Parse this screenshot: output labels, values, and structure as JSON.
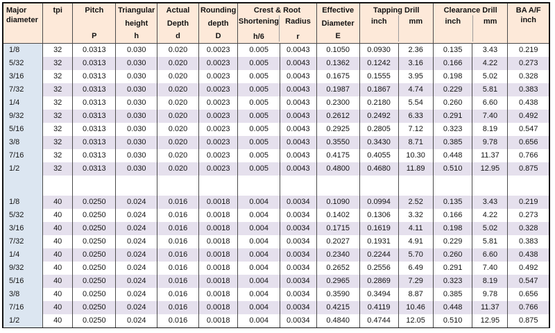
{
  "colors": {
    "header_bg": "#fde9d9",
    "row_bg": "#ffffff",
    "row_alt_bg": "#e5e0ed",
    "first_col_bg": "#dce6f1",
    "border_dark": "#4a4a4a",
    "border_outer": "#121212",
    "border_light": "#9b9b9b",
    "text": "#141414"
  },
  "header": {
    "major_diameter": {
      "line1": "Major",
      "line2": "diameter"
    },
    "tpi": "tpi",
    "pitch": {
      "line1": "Pitch",
      "symbol": "P"
    },
    "triangular_height": {
      "line1": "Triangular",
      "line2": "height",
      "symbol": "h"
    },
    "actual_depth": {
      "line1": "Actual",
      "line2": "Depth",
      "symbol": "d"
    },
    "rounding_depth": {
      "line1": "Rounding",
      "line2": "depth",
      "symbol": "D"
    },
    "crest_root": {
      "group": "Crest & Root",
      "sub1_line1": "Shortening",
      "sub1_line2": "h/6",
      "sub2_line1": "Radius",
      "sub2_line2": "r"
    },
    "effective_diameter": {
      "line1": "Effective",
      "line2": "Diameter",
      "symbol": "E"
    },
    "tapping_drill": {
      "group": "Tapping Drill",
      "sub1": "inch",
      "sub2": "mm"
    },
    "clearance_drill": {
      "group": "Clearance Drill",
      "sub1": "inch",
      "sub2": "mm"
    },
    "ba_af": {
      "line1": "BA A/F",
      "line2": "inch"
    }
  },
  "chart_data": {
    "type": "table",
    "columns": [
      "Major diameter",
      "tpi",
      "Pitch P",
      "Triangular height h",
      "Actual Depth d",
      "Rounding depth D",
      "Crest & Root Shortening h/6",
      "Crest & Root Radius r",
      "Effective Diameter E",
      "Tapping Drill inch",
      "Tapping Drill mm",
      "Clearance Drill inch",
      "Clearance Drill mm",
      "BA A/F inch"
    ],
    "sections": [
      {
        "tpi": "32",
        "rows": [
          [
            "1/8",
            "32",
            "0.0313",
            "0.030",
            "0.020",
            "0.0023",
            "0.005",
            "0.0043",
            "0.1050",
            "0.0930",
            "2.36",
            "0.135",
            "3.43",
            "0.219"
          ],
          [
            "5/32",
            "32",
            "0.0313",
            "0.030",
            "0.020",
            "0.0023",
            "0.005",
            "0.0043",
            "0.1362",
            "0.1242",
            "3.16",
            "0.166",
            "4.22",
            "0.273"
          ],
          [
            "3/16",
            "32",
            "0.0313",
            "0.030",
            "0.020",
            "0.0023",
            "0.005",
            "0.0043",
            "0.1675",
            "0.1555",
            "3.95",
            "0.198",
            "5.02",
            "0.328"
          ],
          [
            "7/32",
            "32",
            "0.0313",
            "0.030",
            "0.020",
            "0.0023",
            "0.005",
            "0.0043",
            "0.1987",
            "0.1867",
            "4.74",
            "0.229",
            "5.81",
            "0.383"
          ],
          [
            "1/4",
            "32",
            "0.0313",
            "0.030",
            "0.020",
            "0.0023",
            "0.005",
            "0.0043",
            "0.2300",
            "0.2180",
            "5.54",
            "0.260",
            "6.60",
            "0.438"
          ],
          [
            "9/32",
            "32",
            "0.0313",
            "0.030",
            "0.020",
            "0.0023",
            "0.005",
            "0.0043",
            "0.2612",
            "0.2492",
            "6.33",
            "0.291",
            "7.40",
            "0.492"
          ],
          [
            "5/16",
            "32",
            "0.0313",
            "0.030",
            "0.020",
            "0.0023",
            "0.005",
            "0.0043",
            "0.2925",
            "0.2805",
            "7.12",
            "0.323",
            "8.19",
            "0.547"
          ],
          [
            "3/8",
            "32",
            "0.0313",
            "0.030",
            "0.020",
            "0.0023",
            "0.005",
            "0.0043",
            "0.3550",
            "0.3430",
            "8.71",
            "0.385",
            "9.78",
            "0.656"
          ],
          [
            "7/16",
            "32",
            "0.0313",
            "0.030",
            "0.020",
            "0.0023",
            "0.005",
            "0.0043",
            "0.4175",
            "0.4055",
            "10.30",
            "0.448",
            "11.37",
            "0.766"
          ],
          [
            "1/2",
            "32",
            "0.0313",
            "0.030",
            "0.020",
            "0.0023",
            "0.005",
            "0.0043",
            "0.4800",
            "0.4680",
            "11.89",
            "0.510",
            "12.95",
            "0.875"
          ]
        ]
      },
      {
        "tpi": "40",
        "rows": [
          [
            "1/8",
            "40",
            "0.0250",
            "0.024",
            "0.016",
            "0.0018",
            "0.004",
            "0.0034",
            "0.1090",
            "0.0994",
            "2.52",
            "0.135",
            "3.43",
            "0.219"
          ],
          [
            "5/32",
            "40",
            "0.0250",
            "0.024",
            "0.016",
            "0.0018",
            "0.004",
            "0.0034",
            "0.1402",
            "0.1306",
            "3.32",
            "0.166",
            "4.22",
            "0.273"
          ],
          [
            "3/16",
            "40",
            "0.0250",
            "0.024",
            "0.016",
            "0.0018",
            "0.004",
            "0.0034",
            "0.1715",
            "0.1619",
            "4.11",
            "0.198",
            "5.02",
            "0.328"
          ],
          [
            "7/32",
            "40",
            "0.0250",
            "0.024",
            "0.016",
            "0.0018",
            "0.004",
            "0.0034",
            "0.2027",
            "0.1931",
            "4.91",
            "0.229",
            "5.81",
            "0.383"
          ],
          [
            "1/4",
            "40",
            "0.0250",
            "0.024",
            "0.016",
            "0.0018",
            "0.004",
            "0.0034",
            "0.2340",
            "0.2244",
            "5.70",
            "0.260",
            "6.60",
            "0.438"
          ],
          [
            "9/32",
            "40",
            "0.0250",
            "0.024",
            "0.016",
            "0.0018",
            "0.004",
            "0.0034",
            "0.2652",
            "0.2556",
            "6.49",
            "0.291",
            "7.40",
            "0.492"
          ],
          [
            "5/16",
            "40",
            "0.0250",
            "0.024",
            "0.016",
            "0.0018",
            "0.004",
            "0.0034",
            "0.2965",
            "0.2869",
            "7.29",
            "0.323",
            "8.19",
            "0.547"
          ],
          [
            "3/8",
            "40",
            "0.0250",
            "0.024",
            "0.016",
            "0.0018",
            "0.004",
            "0.0034",
            "0.3590",
            "0.3494",
            "8.87",
            "0.385",
            "9.78",
            "0.656"
          ],
          [
            "7/16",
            "40",
            "0.0250",
            "0.024",
            "0.016",
            "0.0018",
            "0.004",
            "0.0034",
            "0.4215",
            "0.4119",
            "10.46",
            "0.448",
            "11.37",
            "0.766"
          ],
          [
            "1/2",
            "40",
            "0.0250",
            "0.024",
            "0.016",
            "0.0018",
            "0.004",
            "0.0034",
            "0.4840",
            "0.4744",
            "12.05",
            "0.510",
            "12.95",
            "0.875"
          ]
        ]
      }
    ]
  }
}
